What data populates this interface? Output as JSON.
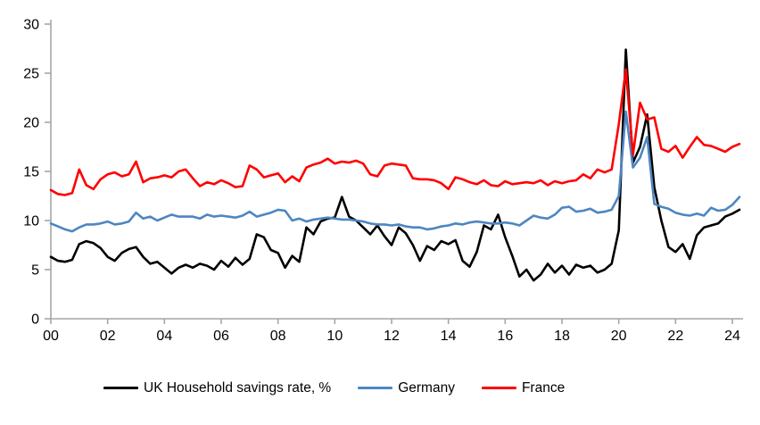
{
  "colors": {
    "axis": "#a6a6a6",
    "uk": "#000000",
    "germany": "#4d86c1",
    "france": "#ff0000",
    "label": "#000000"
  },
  "chart_data": {
    "type": "line",
    "title": "",
    "xlabel": "",
    "ylabel": "",
    "grid": false,
    "legend_position": "bottom",
    "xlim": [
      2000,
      2024.3
    ],
    "ylim": [
      0,
      30
    ],
    "y_ticks": [
      "0",
      "5",
      "10",
      "15",
      "20",
      "25",
      "30"
    ],
    "y_tick_values": [
      0,
      5,
      10,
      15,
      20,
      25,
      30
    ],
    "x_ticks": [
      "00",
      "02",
      "04",
      "06",
      "08",
      "10",
      "12",
      "14",
      "16",
      "18",
      "20",
      "22",
      "24"
    ],
    "x_tick_values": [
      2000,
      2002,
      2004,
      2006,
      2008,
      2010,
      2012,
      2014,
      2016,
      2018,
      2020,
      2022,
      2024
    ],
    "x_start": 2000,
    "x_step": 0.25,
    "series": [
      {
        "name": "UK Household savings rate, %",
        "color": "#000000",
        "values": [
          6.3,
          5.9,
          5.8,
          6.0,
          7.6,
          7.9,
          7.7,
          7.2,
          6.3,
          5.9,
          6.7,
          7.1,
          7.3,
          6.3,
          5.6,
          5.8,
          5.2,
          4.6,
          5.2,
          5.5,
          5.2,
          5.6,
          5.4,
          5.0,
          5.9,
          5.3,
          6.2,
          5.5,
          6.1,
          8.6,
          8.3,
          7.0,
          6.7,
          5.2,
          6.4,
          5.8,
          9.3,
          8.6,
          9.9,
          10.2,
          10.3,
          12.4,
          10.4,
          10.0,
          9.3,
          8.6,
          9.5,
          8.4,
          7.5,
          9.3,
          8.7,
          7.5,
          5.9,
          7.4,
          7.0,
          7.9,
          7.6,
          8.0,
          5.9,
          5.3,
          6.8,
          9.5,
          9.1,
          10.6,
          8.3,
          6.4,
          4.3,
          5.0,
          3.9,
          4.5,
          5.6,
          4.7,
          5.4,
          4.5,
          5.5,
          5.2,
          5.4,
          4.7,
          5.0,
          5.6,
          9.0,
          27.4,
          15.9,
          17.5,
          20.8,
          13.4,
          10.0,
          7.3,
          6.8,
          7.6,
          6.1,
          8.5,
          9.3,
          9.5,
          9.7,
          10.4,
          10.7,
          11.1
        ]
      },
      {
        "name": "Germany",
        "color": "#4d86c1",
        "values": [
          9.7,
          9.4,
          9.1,
          8.9,
          9.3,
          9.6,
          9.6,
          9.7,
          9.9,
          9.6,
          9.7,
          9.9,
          10.8,
          10.2,
          10.4,
          10.0,
          10.3,
          10.6,
          10.4,
          10.4,
          10.4,
          10.2,
          10.6,
          10.4,
          10.5,
          10.4,
          10.3,
          10.5,
          10.9,
          10.4,
          10.6,
          10.8,
          11.1,
          11.0,
          10.0,
          10.2,
          9.9,
          10.1,
          10.2,
          10.3,
          10.2,
          10.1,
          10.1,
          10.0,
          9.9,
          9.7,
          9.6,
          9.6,
          9.5,
          9.6,
          9.4,
          9.3,
          9.3,
          9.1,
          9.2,
          9.4,
          9.5,
          9.7,
          9.6,
          9.8,
          9.9,
          9.8,
          9.7,
          9.7,
          9.8,
          9.7,
          9.5,
          10.0,
          10.5,
          10.3,
          10.2,
          10.6,
          11.3,
          11.4,
          10.9,
          11.0,
          11.2,
          10.8,
          10.9,
          11.1,
          12.5,
          21.1,
          15.4,
          16.4,
          18.5,
          11.7,
          11.4,
          11.2,
          10.8,
          10.6,
          10.5,
          10.7,
          10.5,
          11.3,
          11.0,
          11.1,
          11.6,
          12.4
        ]
      },
      {
        "name": "France",
        "color": "#ff0000",
        "values": [
          13.1,
          12.7,
          12.6,
          12.8,
          15.2,
          13.6,
          13.2,
          14.2,
          14.7,
          14.9,
          14.5,
          14.7,
          16.0,
          13.9,
          14.3,
          14.4,
          14.6,
          14.4,
          15.0,
          15.2,
          14.3,
          13.5,
          13.9,
          13.7,
          14.1,
          13.8,
          13.4,
          13.5,
          15.6,
          15.2,
          14.4,
          14.6,
          14.8,
          13.9,
          14.5,
          14.0,
          15.4,
          15.7,
          15.9,
          16.3,
          15.8,
          16.0,
          15.9,
          16.1,
          15.8,
          14.7,
          14.5,
          15.6,
          15.8,
          15.7,
          15.6,
          14.3,
          14.2,
          14.2,
          14.1,
          13.8,
          13.2,
          14.4,
          14.2,
          13.9,
          13.7,
          14.1,
          13.6,
          13.5,
          14.0,
          13.7,
          13.8,
          13.9,
          13.8,
          14.1,
          13.6,
          14.0,
          13.8,
          14.0,
          14.1,
          14.7,
          14.3,
          15.2,
          14.9,
          15.2,
          19.8,
          25.4,
          16.7,
          22.0,
          20.3,
          20.5,
          17.3,
          17.0,
          17.6,
          16.4,
          17.5,
          18.5,
          17.7,
          17.6,
          17.3,
          17.0,
          17.5,
          17.8
        ]
      }
    ]
  },
  "legend": {
    "items": [
      {
        "label": "UK Household savings rate, %"
      },
      {
        "label": "Germany"
      },
      {
        "label": "France"
      }
    ]
  }
}
